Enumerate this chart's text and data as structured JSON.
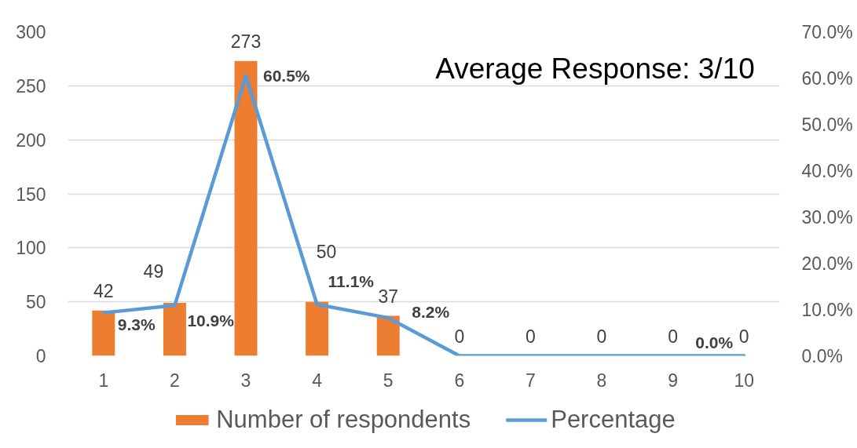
{
  "chart_data": {
    "type": "bar",
    "categories": [
      "1",
      "2",
      "3",
      "4",
      "5",
      "6",
      "7",
      "8",
      "9",
      "10"
    ],
    "series": [
      {
        "name": "Number of respondents",
        "color": "#ed7d31",
        "values": [
          42,
          49,
          273,
          50,
          37,
          0,
          0,
          0,
          0,
          0
        ],
        "value_labels": [
          "42",
          "49",
          "273",
          "50",
          "37",
          "0",
          "0",
          "0",
          "0",
          "0"
        ]
      },
      {
        "name": "Percentage",
        "type": "line",
        "axis": "y2",
        "color": "#5b9bd5",
        "values": [
          9.3,
          10.9,
          60.5,
          11.1,
          8.2,
          0,
          0,
          0,
          0,
          0
        ],
        "value_labels": [
          "9.3%",
          "10.9%",
          "60.5%",
          "11.1%",
          "8.2%",
          null,
          null,
          null,
          null,
          "0.0%"
        ]
      }
    ],
    "ylim": [
      0,
      300
    ],
    "yticks": [
      0,
      50,
      100,
      150,
      200,
      250,
      300
    ],
    "y2lim": [
      0,
      70
    ],
    "y2ticks": [
      {
        "value": 0,
        "label": "0.0%"
      },
      {
        "value": 10,
        "label": "10.0%"
      },
      {
        "value": 20,
        "label": "20.0%"
      },
      {
        "value": 30,
        "label": "30.0%"
      },
      {
        "value": 40,
        "label": "40.0%"
      },
      {
        "value": 50,
        "label": "50.0%"
      },
      {
        "value": 60,
        "label": "60.0%"
      },
      {
        "value": 70,
        "label": "70.0%"
      }
    ],
    "grid": "y",
    "legend": "bottom",
    "annotations": [
      "Average Response: 3/10"
    ]
  }
}
